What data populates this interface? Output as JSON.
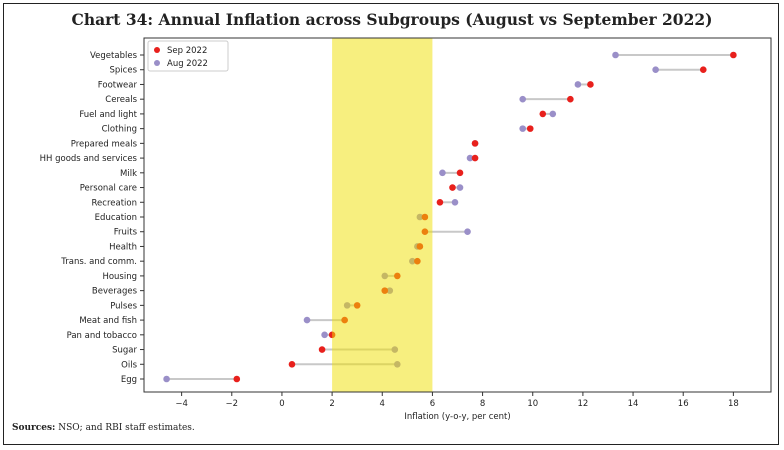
{
  "title": "Chart 34: Annual Inflation across Subgroups (August vs September 2022)",
  "source": {
    "label": "Sources:",
    "text": " NSO; and RBI staff estimates."
  },
  "chart_data": {
    "type": "dumbbell",
    "title": "Chart 34: Annual Inflation across Subgroups (August vs September 2022)",
    "xlabel": "Inflation (y-o-y, per cent)",
    "ylabel": "",
    "xlim": [
      -5.5,
      19.5
    ],
    "xticks": [
      -4,
      -2,
      0,
      2,
      4,
      6,
      8,
      10,
      12,
      14,
      16,
      18
    ],
    "shaded_band": {
      "from": 2,
      "to": 6,
      "color": "#f0e000"
    },
    "grid": false,
    "legend_position": "top-left",
    "categories": [
      "Vegetables",
      "Spices",
      "Footwear",
      "Cereals",
      "Fuel and light",
      "Clothing",
      "Prepared meals",
      "HH goods and services",
      "Milk",
      "Personal care",
      "Recreation",
      "Education",
      "Fruits",
      "Health",
      "Trans. and comm.",
      "Housing",
      "Beverages",
      "Pulses",
      "Meat and fish",
      "Pan and tobacco",
      "Sugar",
      "Oils",
      "Egg"
    ],
    "series": [
      {
        "name": "Sep 2022",
        "color": "#e8201c",
        "values": [
          18.0,
          16.8,
          12.3,
          11.5,
          10.4,
          9.9,
          7.7,
          7.7,
          7.1,
          6.8,
          6.3,
          5.7,
          5.7,
          5.5,
          5.4,
          4.6,
          4.1,
          3.0,
          2.5,
          2.0,
          1.6,
          0.4,
          -1.8
        ]
      },
      {
        "name": "Aug 2022",
        "color": "#9a8fc8",
        "values": [
          13.3,
          14.9,
          11.8,
          9.6,
          10.8,
          9.6,
          7.7,
          7.5,
          6.4,
          7.1,
          6.9,
          5.5,
          7.4,
          5.4,
          5.2,
          4.1,
          4.3,
          2.6,
          1.0,
          1.7,
          4.5,
          4.6,
          -4.6
        ]
      }
    ],
    "connector_color": "#c8c8c8"
  }
}
